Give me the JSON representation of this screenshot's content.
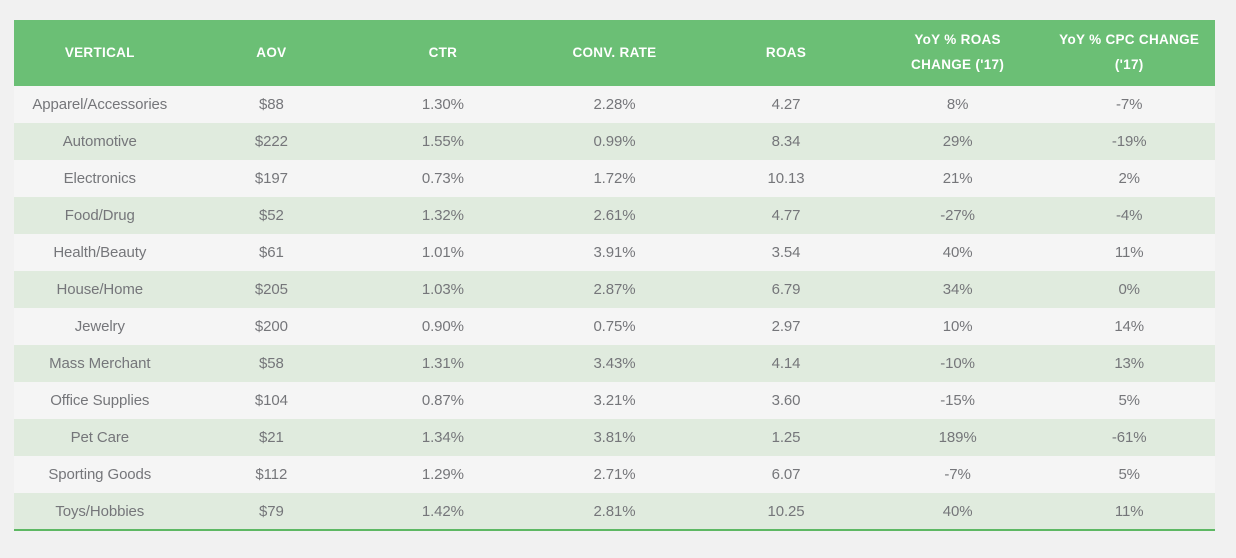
{
  "theme": {
    "header_bg": "#6bbf75",
    "header_text": "#ffffff",
    "row_bg": "#f5f5f5",
    "row_alt_bg": "#e0ebde",
    "text_color": "#75767a",
    "bottom_border": "#5db863",
    "page_bg": "#f1f1f1"
  },
  "chart_data": {
    "type": "table",
    "columns": [
      "VERTICAL",
      "AOV",
      "CTR",
      "CONV. RATE",
      "ROAS",
      "YoY % ROAS CHANGE ('17)",
      "YoY % CPC CHANGE ('17)"
    ],
    "rows": [
      [
        "Apparel/Accessories",
        "$88",
        "1.30%",
        "2.28%",
        "4.27",
        "8%",
        "-7%"
      ],
      [
        "Automotive",
        "$222",
        "1.55%",
        "0.99%",
        "8.34",
        "29%",
        "-19%"
      ],
      [
        "Electronics",
        "$197",
        "0.73%",
        "1.72%",
        "10.13",
        "21%",
        "2%"
      ],
      [
        "Food/Drug",
        "$52",
        "1.32%",
        "2.61%",
        "4.77",
        "-27%",
        "-4%"
      ],
      [
        "Health/Beauty",
        "$61",
        "1.01%",
        "3.91%",
        "3.54",
        "40%",
        "11%"
      ],
      [
        "House/Home",
        "$205",
        "1.03%",
        "2.87%",
        "6.79",
        "34%",
        "0%"
      ],
      [
        "Jewelry",
        "$200",
        "0.90%",
        "0.75%",
        "2.97",
        "10%",
        "14%"
      ],
      [
        "Mass Merchant",
        "$58",
        "1.31%",
        "3.43%",
        "4.14",
        "-10%",
        "13%"
      ],
      [
        "Office Supplies",
        "$104",
        "0.87%",
        "3.21%",
        "3.60",
        "-15%",
        "5%"
      ],
      [
        "Pet Care",
        "$21",
        "1.34%",
        "3.81%",
        "1.25",
        "189%",
        "-61%"
      ],
      [
        "Sporting Goods",
        "$112",
        "1.29%",
        "2.71%",
        "6.07",
        "-7%",
        "5%"
      ],
      [
        "Toys/Hobbies",
        "$79",
        "1.42%",
        "2.81%",
        "10.25",
        "40%",
        "11%"
      ]
    ]
  }
}
